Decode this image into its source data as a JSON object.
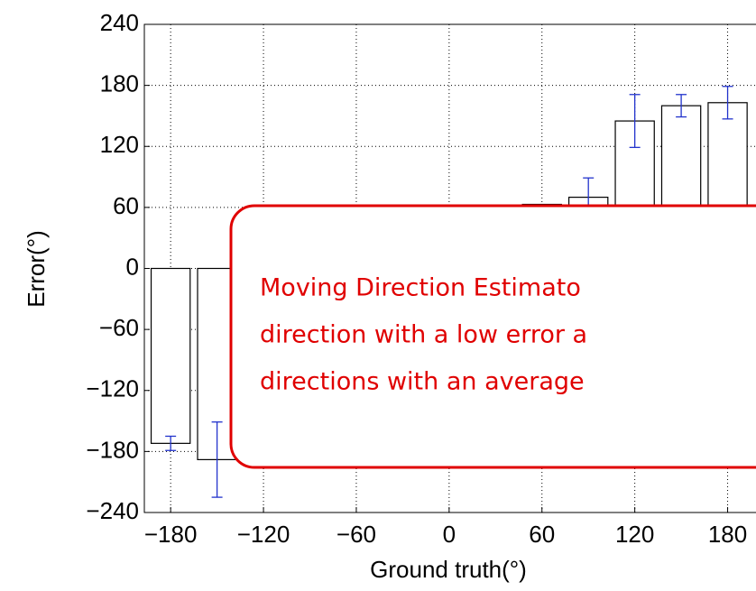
{
  "chart_data": {
    "type": "bar",
    "x": [
      -180,
      -150,
      60,
      90,
      120,
      150,
      180
    ],
    "values": [
      -172,
      -188,
      63,
      70,
      145,
      160,
      163
    ],
    "errors": [
      7,
      37,
      0,
      19,
      26,
      11,
      16
    ],
    "color": "#ffffff",
    "edge_color": "#000000",
    "error_color": "#2233cc",
    "xlabel": "Ground truth(°)",
    "ylabel": "Error(°)",
    "xlim": [
      -197,
      217
    ],
    "ylim": [
      -240,
      240
    ],
    "grid": true,
    "xticks": [
      {
        "value": -180,
        "label": "−180"
      },
      {
        "value": -120,
        "label": "−120"
      },
      {
        "value": -60,
        "label": "−60"
      },
      0,
      60,
      120,
      180
    ],
    "yticks": [
      {
        "value": -240,
        "label": "−240"
      },
      {
        "value": -180,
        "label": "−180"
      },
      {
        "value": -120,
        "label": "−120"
      },
      {
        "value": -60,
        "label": "−60"
      },
      0,
      60,
      120,
      180,
      240
    ],
    "annotation": [
      "Moving Direction  Estimato",
      "direction  with a low error a",
      "directions  with an average"
    ]
  }
}
